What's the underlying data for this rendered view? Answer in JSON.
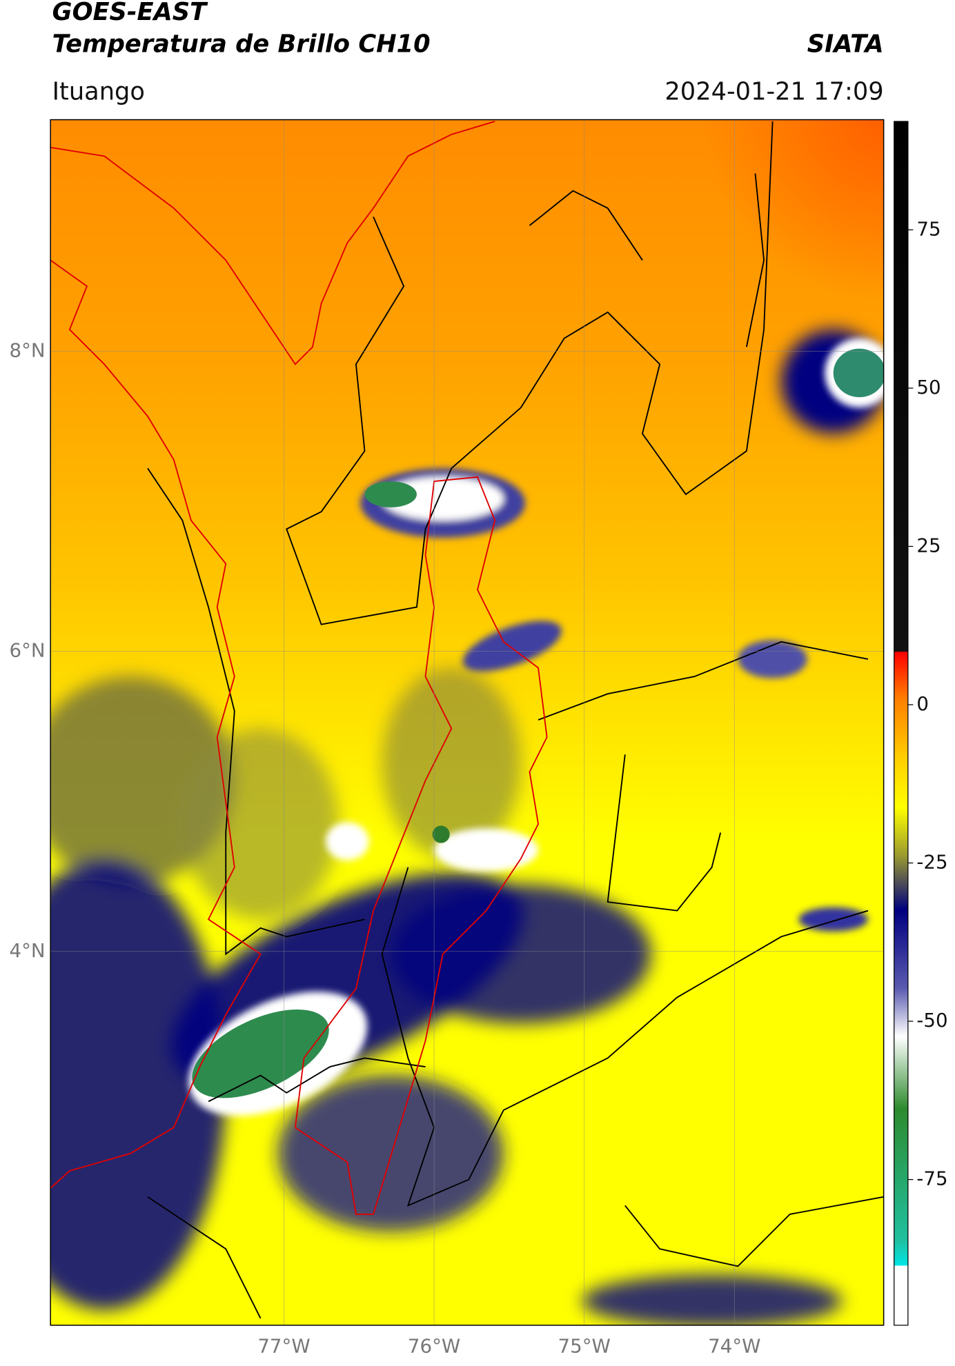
{
  "header": {
    "title": "GOES-EAST",
    "subtitle": "Temperatura de Brillo CH10",
    "source": "SIATA",
    "location": "Ituango",
    "timestamp": "2024-01-21 17:09"
  },
  "map": {
    "lat_labels": [
      "8°N",
      "6°N",
      "4°N"
    ],
    "lon_labels": [
      "77°W",
      "76°W",
      "75°W",
      "74°W"
    ]
  },
  "colorbar": {
    "ticks": [
      75,
      50,
      25,
      0,
      -25,
      -50,
      -75
    ]
  }
}
